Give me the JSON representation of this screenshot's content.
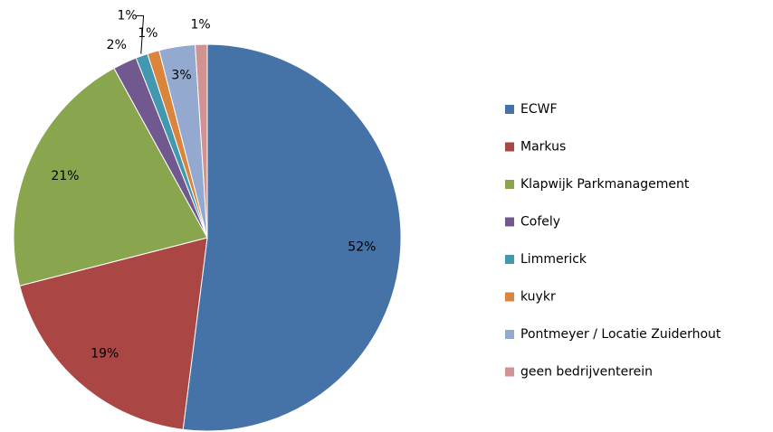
{
  "chart_data": {
    "type": "pie",
    "categories": [
      "ECWF",
      "Markus",
      "Klapwijk Parkmanagement",
      "Cofely",
      "Limmerick",
      "kuykr",
      "Pontmeyer / Locatie Zuiderhout",
      "geen bedrijventerein"
    ],
    "values": [
      52,
      19,
      21,
      2,
      1,
      1,
      3,
      1
    ],
    "value_labels": [
      "52%",
      "19%",
      "21%",
      "2%",
      "1%",
      "1%",
      "3%",
      "1%"
    ],
    "colors": [
      "#4572a7",
      "#aa4643",
      "#89a54e",
      "#71588f",
      "#4198af",
      "#db843d",
      "#93a9cf",
      "#d19392"
    ],
    "legend": "right"
  }
}
